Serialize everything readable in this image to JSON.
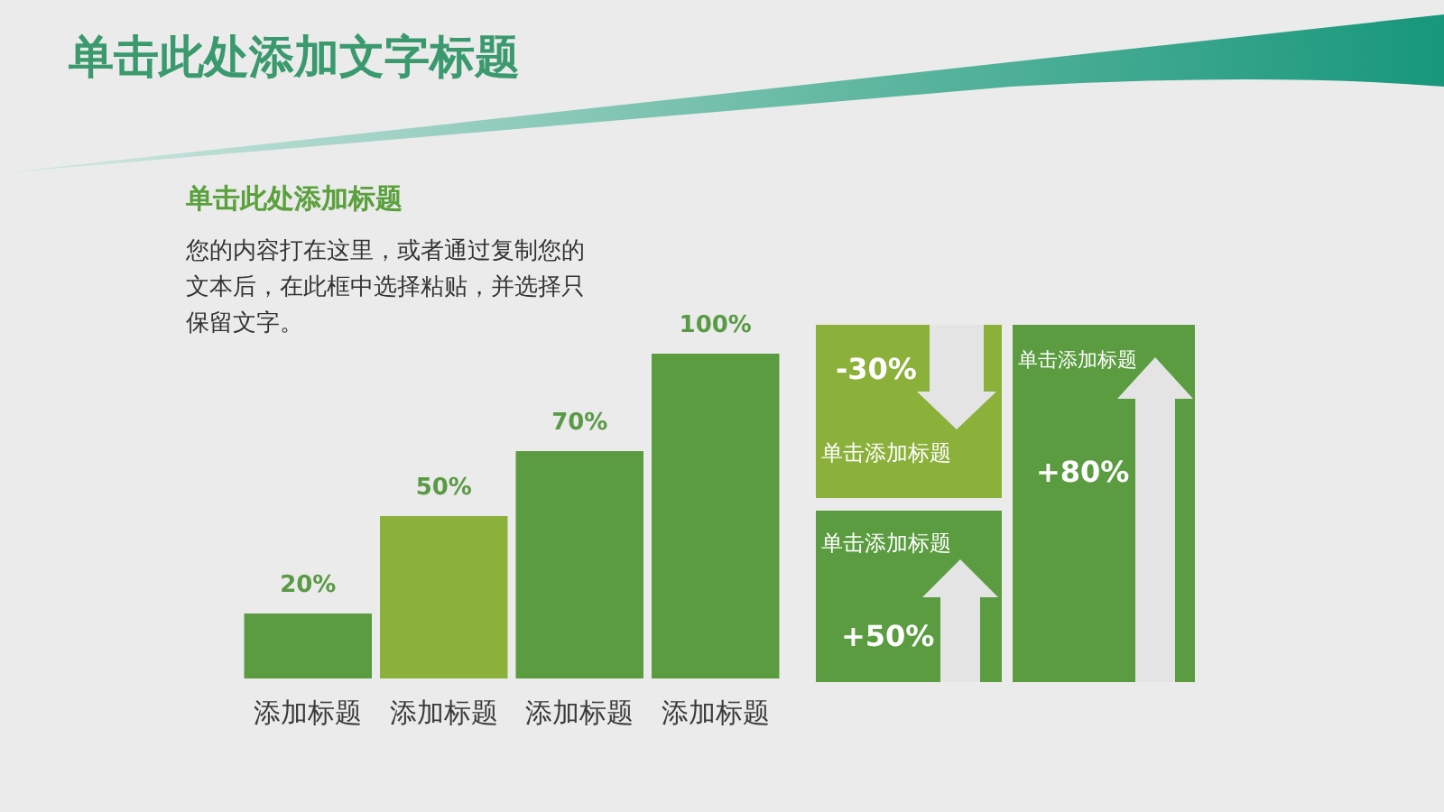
{
  "chart_data": [
    {
      "type": "bar",
      "title": "单击此处添加文字标题",
      "subtitle": "单击此处添加标题",
      "annotations": [
        "您的内容打在这里，或者通过复制您的文本后，在此框中选择粘贴，并选择只保留文字。"
      ],
      "categories": [
        "添加标题",
        "添加标题",
        "添加标题",
        "添加标题"
      ],
      "values": [
        20,
        50,
        70,
        100
      ],
      "value_labels": [
        "20%",
        "50%",
        "70%",
        "100%"
      ],
      "colors": [
        "#5a9c3f",
        "#8bb13b",
        "#5a9c3f",
        "#5a9c3f"
      ]
    },
    {
      "type": "other",
      "categories": [
        "单击添加标题",
        "单击添加标题",
        "单击添加标题"
      ],
      "values": [
        -30,
        50,
        80
      ],
      "value_labels": [
        "-30%",
        "+50%",
        "+80%"
      ],
      "colors": [
        "#8bb13b",
        "#5a9c3f",
        "#5a9c3f"
      ]
    }
  ]
}
